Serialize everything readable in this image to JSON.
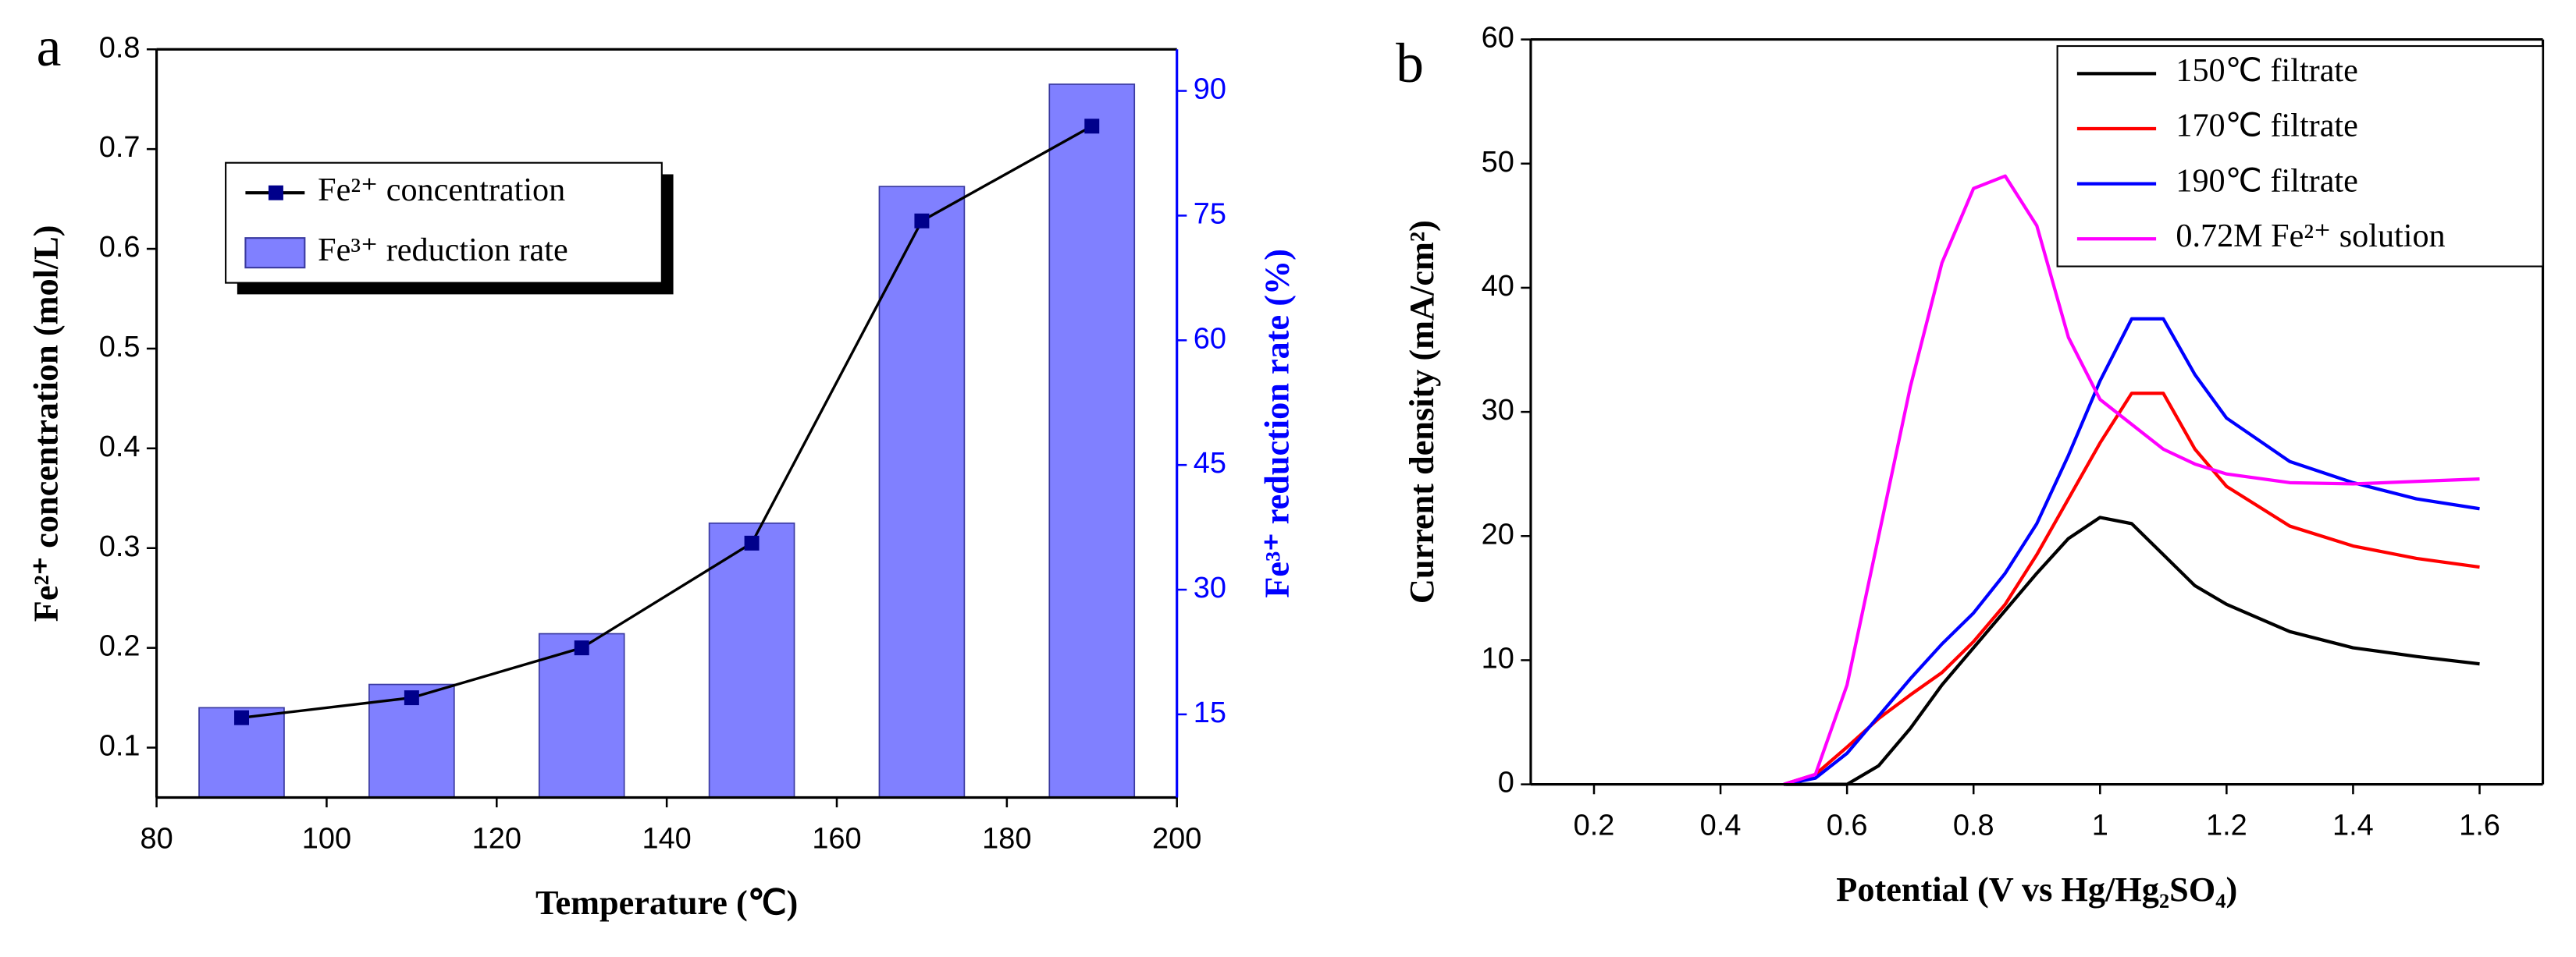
{
  "chart_data": [
    {
      "type": "bar_line",
      "panel": "a",
      "x_label": "Temperature (℃)",
      "y_label": "Fe²⁺ concentration  (mol/L)",
      "y2_label": "Fe³⁺ reduction rate  (%)",
      "x": [
        90,
        110,
        130,
        150,
        170,
        190
      ],
      "series": [
        {
          "name": "Fe²⁺ concentration",
          "type": "line",
          "color": "#000000",
          "marker_color": "#00008b",
          "values": [
            0.13,
            0.15,
            0.2,
            0.305,
            0.628,
            0.723
          ]
        },
        {
          "name": "Fe³⁺ reduction rate",
          "type": "bar",
          "axis": "y2",
          "color": "#8080ff",
          "values": [
            15.8,
            18.6,
            24.7,
            38,
            78.5,
            90.8
          ]
        }
      ],
      "xlim": [
        80,
        200
      ],
      "xticks": [
        80,
        100,
        120,
        140,
        160,
        180,
        200
      ],
      "ylim": [
        0.05,
        0.8
      ],
      "yticks": [
        0.1,
        0.2,
        0.3,
        0.4,
        0.5,
        0.6,
        0.7,
        0.8
      ],
      "y2lim": [
        5,
        95
      ],
      "y2ticks": [
        15,
        30,
        45,
        60,
        75,
        90
      ],
      "y2_color": "#0000ff"
    },
    {
      "type": "line",
      "panel": "b",
      "x_label": "Potential (V vs Hg/Hg₂SO₄)",
      "y_label": "Current density (mA/cm²)",
      "x": [
        0.5,
        0.55,
        0.6,
        0.65,
        0.7,
        0.75,
        0.8,
        0.85,
        0.9,
        0.95,
        1.0,
        1.05,
        1.1,
        1.15,
        1.2,
        1.3,
        1.4,
        1.5,
        1.6
      ],
      "series": [
        {
          "name": "150℃ filtrate",
          "color": "#000000",
          "values": [
            0,
            0,
            0,
            1.5,
            4.5,
            8,
            11,
            14,
            17,
            19.8,
            21.5,
            21,
            18.5,
            16,
            14.5,
            12.3,
            11,
            10.3,
            9.7
          ]
        },
        {
          "name": "170℃ filtrate",
          "color": "#ff0000",
          "values": [
            0,
            0.8,
            3,
            5.3,
            7.2,
            9,
            11.5,
            14.5,
            18.5,
            23,
            27.5,
            31.5,
            31.5,
            27,
            24,
            20.8,
            19.2,
            18.2,
            17.5
          ]
        },
        {
          "name": "190℃ filtrate",
          "color": "#0000ff",
          "values": [
            0,
            0.5,
            2.5,
            5.5,
            8.5,
            11.3,
            13.8,
            17,
            21,
            26.5,
            32.5,
            37.5,
            37.5,
            33,
            29.5,
            26,
            24.3,
            23,
            22.2
          ]
        },
        {
          "name": "0.72M Fe²⁺ solution",
          "color": "#ff00ff",
          "values": [
            0,
            0.8,
            8,
            20,
            32,
            42,
            48,
            49,
            45,
            36,
            31,
            29,
            27,
            25.8,
            25,
            24.3,
            24.2,
            24.4,
            24.6
          ]
        }
      ],
      "xlim": [
        0.1,
        1.7
      ],
      "xticks": [
        0.2,
        0.4,
        0.6,
        0.8,
        1.0,
        1.2,
        1.4,
        1.6
      ],
      "ylim": [
        0,
        60
      ],
      "yticks": [
        0,
        10,
        20,
        30,
        40,
        50,
        60
      ]
    }
  ]
}
